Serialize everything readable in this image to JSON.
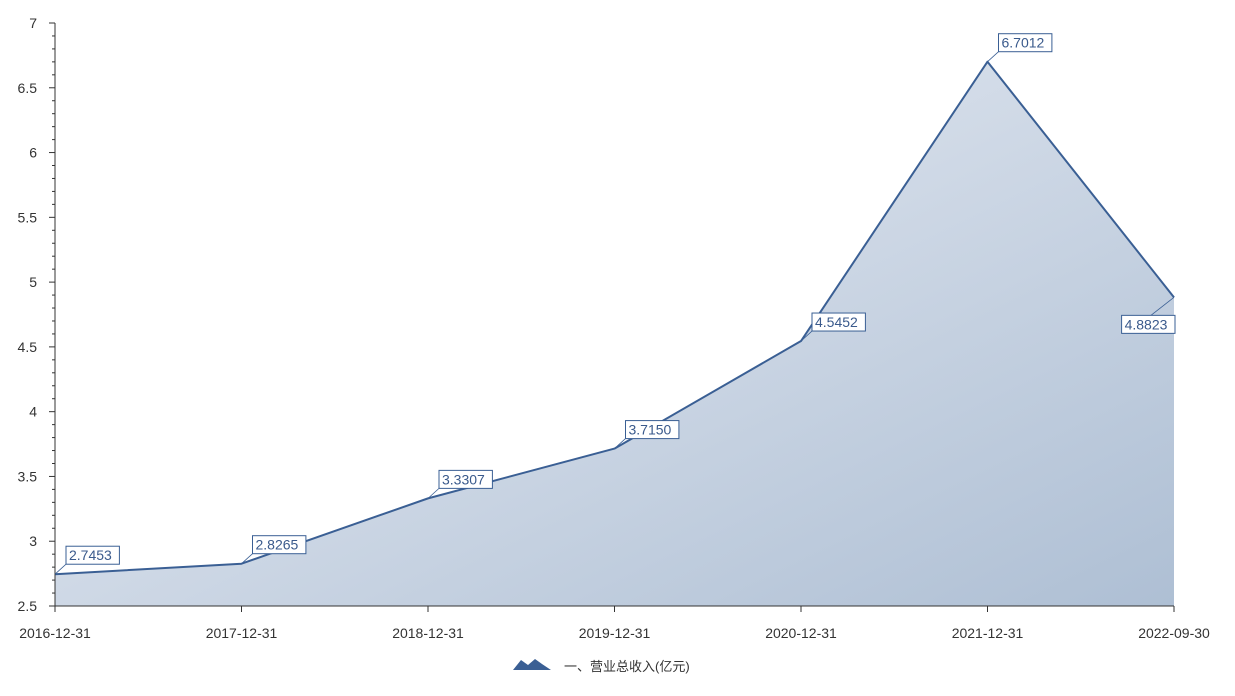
{
  "chart_data": {
    "type": "area",
    "title": "",
    "xlabel": "",
    "ylabel": "",
    "categories": [
      "2016-12-31",
      "2017-12-31",
      "2018-12-31",
      "2019-12-31",
      "2020-12-31",
      "2021-12-31",
      "2022-09-30"
    ],
    "series": [
      {
        "name": "一、营业总收入(亿元)",
        "values": [
          2.7453,
          2.8265,
          3.3307,
          3.715,
          4.5452,
          6.7012,
          4.8823
        ],
        "labels": [
          "2.7453",
          "2.8265",
          "3.3307",
          "3.7150",
          "4.5452",
          "6.7012",
          "4.8823"
        ],
        "color": "#3a5f94"
      }
    ],
    "ylim": [
      2.5,
      7
    ],
    "y_ticks": [
      "2.5",
      "3",
      "3.5",
      "4",
      "4.5",
      "5",
      "5.5",
      "6",
      "6.5",
      "7"
    ],
    "grid": false,
    "legend_position": "bottom-center"
  },
  "legend": {
    "label": "一、营业总收入(亿元)"
  }
}
